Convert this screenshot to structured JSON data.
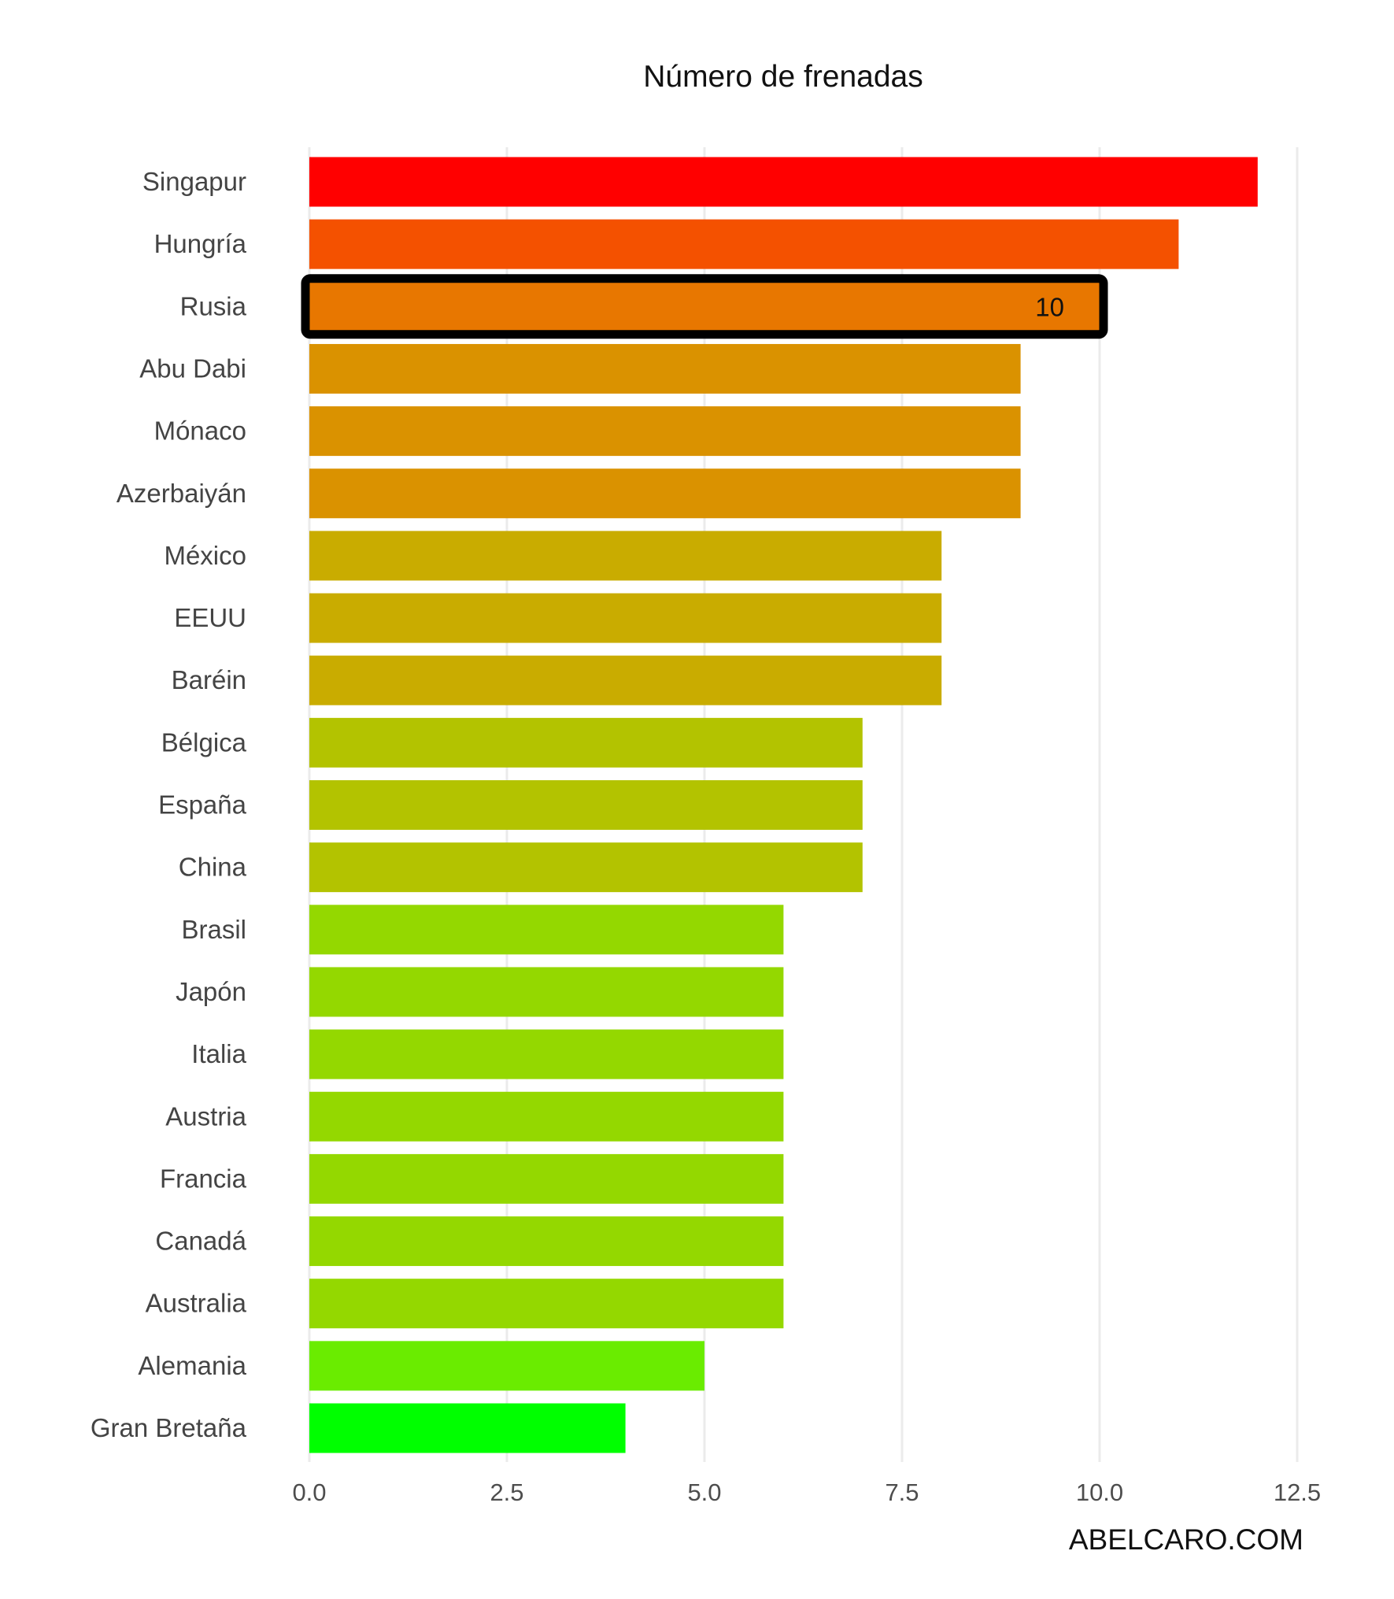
{
  "chart_data": {
    "type": "bar",
    "orientation": "horizontal",
    "title": "Número de frenadas",
    "xlabel": "",
    "ylabel": "",
    "xlim": [
      0,
      12.5
    ],
    "x_ticks": [
      "0.0",
      "2.5",
      "5.0",
      "7.5",
      "10.0",
      "12.5"
    ],
    "grid": "vertical-major",
    "legend": "none",
    "categories": [
      "Singapur",
      "Hungría",
      "Rusia",
      "Abu Dabi",
      "Mónaco",
      "Azerbaiyán",
      "México",
      "EEUU",
      "Baréin",
      "Bélgica",
      "España",
      "China",
      "Brasil",
      "Japón",
      "Italia",
      "Austria",
      "Francia",
      "Canadá",
      "Australia",
      "Alemania",
      "Gran Bretaña"
    ],
    "values": [
      12,
      11,
      10,
      9,
      9,
      9,
      8,
      8,
      8,
      7,
      7,
      7,
      6,
      6,
      6,
      6,
      6,
      6,
      6,
      5,
      4
    ],
    "colors": [
      "#ff0000",
      "#f45100",
      "#e87700",
      "#da9200",
      "#da9200",
      "#da9200",
      "#c9ac00",
      "#c9ac00",
      "#c9ac00",
      "#b3c300",
      "#b3c300",
      "#b3c300",
      "#94d800",
      "#94d800",
      "#94d800",
      "#94d800",
      "#94d800",
      "#94d800",
      "#94d800",
      "#6aec00",
      "#00ff00"
    ],
    "highlight": {
      "category": "Rusia",
      "label": "10",
      "outline_color": "#000000"
    }
  },
  "watermark": "ABELCARO.COM"
}
